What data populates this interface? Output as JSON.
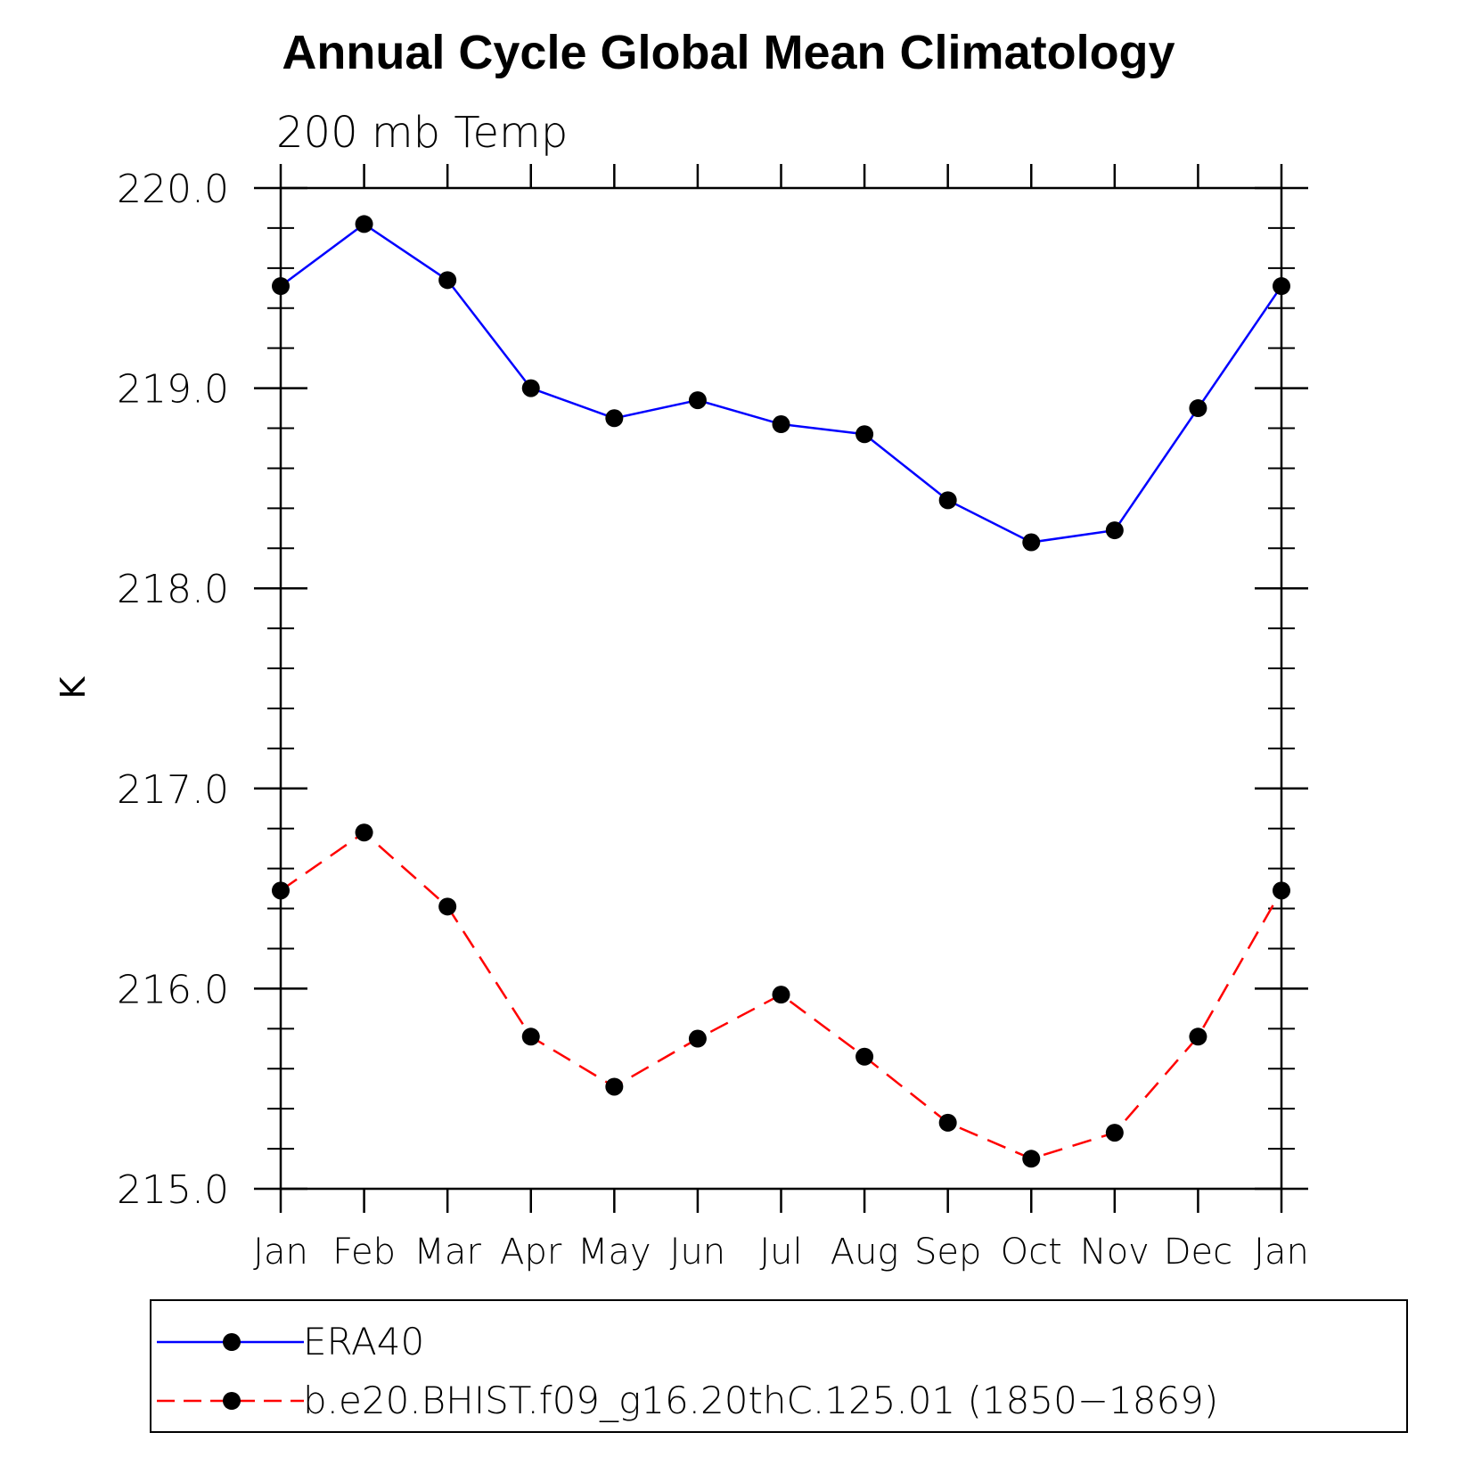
{
  "chart_data": {
    "type": "line",
    "title": "Annual Cycle Global Mean Climatology",
    "subtitle": "200 mb Temp",
    "xlabel": "",
    "ylabel": "K",
    "categories": [
      "Jan",
      "Feb",
      "Mar",
      "Apr",
      "May",
      "Jun",
      "Jul",
      "Aug",
      "Sep",
      "Oct",
      "Nov",
      "Dec",
      "Jan"
    ],
    "ylim": [
      215.0,
      220.0
    ],
    "yticks": [
      "215.0",
      "216.0",
      "217.0",
      "218.0",
      "219.0",
      "220.0"
    ],
    "yminor_step": 0.2,
    "series": [
      {
        "name": "ERA40",
        "color": "#0000ff",
        "dash": "solid",
        "marker": "filled-circle",
        "values": [
          219.51,
          219.82,
          219.54,
          219.0,
          218.85,
          218.94,
          218.82,
          218.77,
          218.44,
          218.23,
          218.29,
          218.9,
          219.51
        ]
      },
      {
        "name": "b.e20.BHIST.f09_g16.20thC.125.01 (1850−1869)",
        "color": "#ff0000",
        "dash": "dashed",
        "marker": "filled-circle",
        "values": [
          216.49,
          216.78,
          216.41,
          215.76,
          215.51,
          215.75,
          215.97,
          215.66,
          215.33,
          215.15,
          215.28,
          215.76,
          216.49
        ]
      }
    ]
  }
}
